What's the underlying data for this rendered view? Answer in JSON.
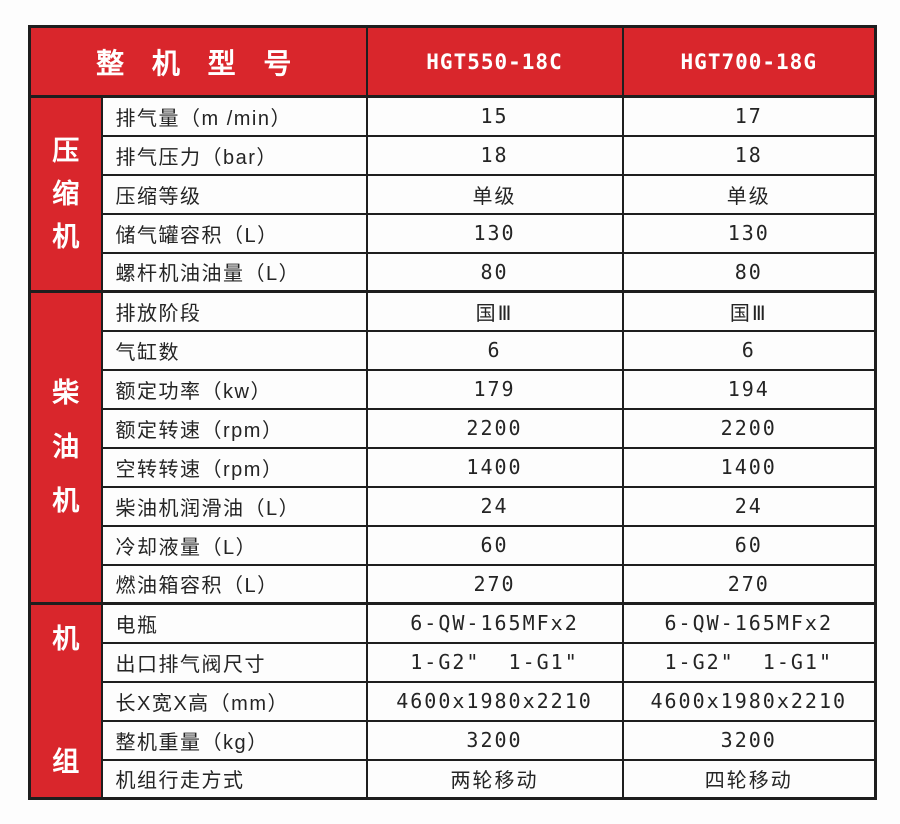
{
  "header": {
    "title": "整 机 型 号",
    "models": [
      "HGT550-18C",
      "HGT700-18G"
    ]
  },
  "colors": {
    "accent_red": "#d9262c",
    "border_black": "#1e1e1e",
    "header_text": "#ffffff",
    "body_text": "#242424"
  },
  "groups": [
    {
      "label": "压缩机",
      "rows": [
        {
          "label": "排气量（m /min）",
          "v1": "15",
          "v2": "17"
        },
        {
          "label": "排气压力（bar）",
          "v1": "18",
          "v2": "18"
        },
        {
          "label": "压缩等级",
          "v1": "单级",
          "v2": "单级"
        },
        {
          "label": "储气罐容积（L）",
          "v1": "130",
          "v2": "130"
        },
        {
          "label": "螺杆机油油量（L）",
          "v1": "80",
          "v2": "80"
        }
      ]
    },
    {
      "label": "柴油机",
      "rows": [
        {
          "label": "排放阶段",
          "v1": "国Ⅲ",
          "v2": "国Ⅲ"
        },
        {
          "label": "气缸数",
          "v1": "6",
          "v2": "6"
        },
        {
          "label": "额定功率（kw）",
          "v1": "179",
          "v2": "194"
        },
        {
          "label": "额定转速（rpm）",
          "v1": "2200",
          "v2": "2200"
        },
        {
          "label": "空转转速（rpm）",
          "v1": "1400",
          "v2": "1400"
        },
        {
          "label": "柴油机润滑油（L）",
          "v1": "24",
          "v2": "24"
        },
        {
          "label": "冷却液量（L）",
          "v1": "60",
          "v2": "60"
        },
        {
          "label": "燃油箱容积（L）",
          "v1": "270",
          "v2": "270"
        }
      ]
    },
    {
      "label": "机组",
      "rows": [
        {
          "label": "电瓶",
          "v1": "6-QW-165MFx2",
          "v2": "6-QW-165MFx2"
        },
        {
          "label": "出口排气阀尺寸",
          "v1": "1-G2\"  1-G1\"",
          "v2": "1-G2\"  1-G1\""
        },
        {
          "label": "长X宽X高（mm）",
          "v1": "4600x1980x2210",
          "v2": "4600x1980x2210"
        },
        {
          "label": "整机重量（kg）",
          "v1": "3200",
          "v2": "3200"
        },
        {
          "label": "机组行走方式",
          "v1": "两轮移动",
          "v2": "四轮移动"
        }
      ]
    }
  ]
}
